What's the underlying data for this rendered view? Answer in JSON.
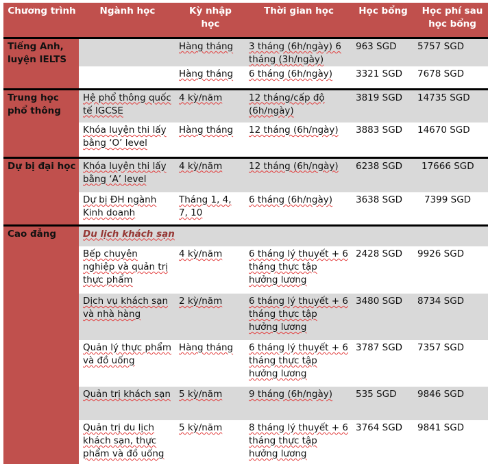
{
  "headers": [
    "Chương trình",
    "Ngành học",
    "Kỳ nhập học",
    "Thời gian học",
    "Học bổng",
    "Học phí sau học bổng"
  ],
  "groups": [
    {
      "program": "Tiếng Anh, luyện IELTS",
      "rows": [
        {
          "major": "",
          "intake": "Hàng tháng",
          "duration": "3 tháng (6h/ngày) 6 tháng (3h/ngày)",
          "scholarship": "963 SGD",
          "fee": "5757 SGD"
        },
        {
          "major": "",
          "intake": "Hàng tháng",
          "duration": "6 tháng (6h/ngày)",
          "scholarship": "3321 SGD",
          "fee": "7678 SGD"
        }
      ]
    },
    {
      "program": "Trung học phổ thông",
      "rows": [
        {
          "major": "Hệ phổ thông quốc tế IGCSE",
          "intake": "4 kỳ/năm",
          "duration": "12 tháng/cấp độ (6h/ngày)",
          "scholarship": "3819 SGD",
          "fee": "14735 SGD"
        },
        {
          "major": "Khóa luyện thi lấy bằng ‘O’ level",
          "intake": "Hàng tháng",
          "duration": "12 tháng (6h/ngày)",
          "scholarship": "3883 SGD",
          "fee": "14670 SGD"
        }
      ]
    },
    {
      "program": "Dự bị đại học",
      "rows": [
        {
          "major": "Khóa luyện thi lấy bằng ‘A’ level",
          "intake": "4 kỳ/năm",
          "duration": "12 tháng (6h/ngày)",
          "scholarship": "6238 SGD",
          "fee": "17666 SGD"
        },
        {
          "major": "Dự bị ĐH ngành Kinh doanh",
          "intake": "Tháng 1, 4, 7, 10",
          "duration": "6 tháng (6h/ngày)",
          "scholarship": "3638 SGD",
          "fee": "7399 SGD"
        }
      ]
    },
    {
      "program": "Cao đẳng",
      "subheading": "Du lịch khách sạn",
      "rows": [
        {
          "major": "Bếp chuyên nghiệp và quản trị thực phẩm",
          "intake": "4 kỳ/năm",
          "duration": "6 tháng lý thuyết + 6 tháng thực tập hưởng lương",
          "scholarship": "2428 SGD",
          "fee": "9926 SGD"
        },
        {
          "major": "Dịch vụ khách sạn và nhà hàng",
          "intake": "2 kỳ/năm",
          "duration": "6 tháng lý thuyết + 6 tháng thực tập hưởng lương",
          "scholarship": "3480 SGD",
          "fee": "8734 SGD"
        },
        {
          "major": "Quản lý thực phẩm và đồ uống",
          "intake": "Hàng tháng",
          "duration": "6 tháng lý thuyết + 6 tháng thực tập hưởng lương",
          "scholarship": "3787 SGD",
          "fee": "7357 SGD"
        },
        {
          "major": "Quản trị khách sạn",
          "intake": "5 kỳ/năm",
          "duration": "9 tháng (6h/ngày)",
          "scholarship": "535 SGD",
          "fee": "9846 SGD"
        },
        {
          "major": "Quản trị du lịch khách sạn, thực phẩm và đồ uống",
          "intake": "5 kỳ/năm",
          "duration": "8 tháng lý thuyết + 6 tháng thực tập hưởng lương",
          "scholarship": "3764 SGD",
          "fee": "9841 SGD"
        }
      ]
    }
  ],
  "colors": {
    "header_bg": "#C0504D",
    "alt_row": "#D9D9D9",
    "subheading": "#953734"
  }
}
